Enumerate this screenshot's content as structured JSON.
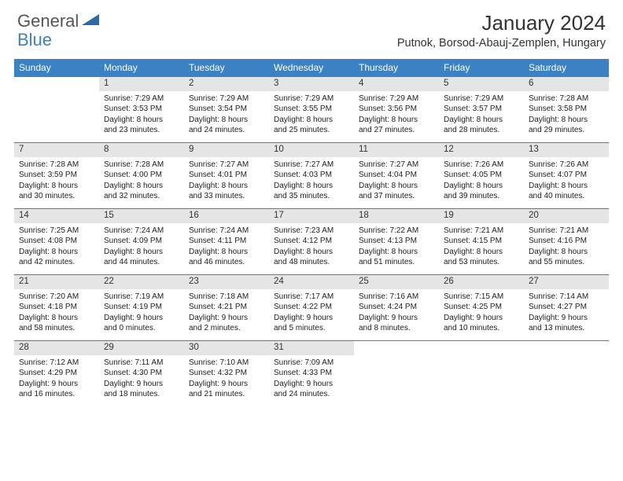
{
  "brand": {
    "general": "General",
    "blue": "Blue"
  },
  "title": "January 2024",
  "location": "Putnok, Borsod-Abauj-Zemplen, Hungary",
  "colors": {
    "header_bg": "#3b82c4",
    "daynum_bg": "#e5e5e5",
    "border": "#3b82c4"
  },
  "weekdays": [
    "Sunday",
    "Monday",
    "Tuesday",
    "Wednesday",
    "Thursday",
    "Friday",
    "Saturday"
  ],
  "weeks": [
    [
      null,
      {
        "n": "1",
        "sr": "Sunrise: 7:29 AM",
        "ss": "Sunset: 3:53 PM",
        "d1": "Daylight: 8 hours",
        "d2": "and 23 minutes."
      },
      {
        "n": "2",
        "sr": "Sunrise: 7:29 AM",
        "ss": "Sunset: 3:54 PM",
        "d1": "Daylight: 8 hours",
        "d2": "and 24 minutes."
      },
      {
        "n": "3",
        "sr": "Sunrise: 7:29 AM",
        "ss": "Sunset: 3:55 PM",
        "d1": "Daylight: 8 hours",
        "d2": "and 25 minutes."
      },
      {
        "n": "4",
        "sr": "Sunrise: 7:29 AM",
        "ss": "Sunset: 3:56 PM",
        "d1": "Daylight: 8 hours",
        "d2": "and 27 minutes."
      },
      {
        "n": "5",
        "sr": "Sunrise: 7:29 AM",
        "ss": "Sunset: 3:57 PM",
        "d1": "Daylight: 8 hours",
        "d2": "and 28 minutes."
      },
      {
        "n": "6",
        "sr": "Sunrise: 7:28 AM",
        "ss": "Sunset: 3:58 PM",
        "d1": "Daylight: 8 hours",
        "d2": "and 29 minutes."
      }
    ],
    [
      {
        "n": "7",
        "sr": "Sunrise: 7:28 AM",
        "ss": "Sunset: 3:59 PM",
        "d1": "Daylight: 8 hours",
        "d2": "and 30 minutes."
      },
      {
        "n": "8",
        "sr": "Sunrise: 7:28 AM",
        "ss": "Sunset: 4:00 PM",
        "d1": "Daylight: 8 hours",
        "d2": "and 32 minutes."
      },
      {
        "n": "9",
        "sr": "Sunrise: 7:27 AM",
        "ss": "Sunset: 4:01 PM",
        "d1": "Daylight: 8 hours",
        "d2": "and 33 minutes."
      },
      {
        "n": "10",
        "sr": "Sunrise: 7:27 AM",
        "ss": "Sunset: 4:03 PM",
        "d1": "Daylight: 8 hours",
        "d2": "and 35 minutes."
      },
      {
        "n": "11",
        "sr": "Sunrise: 7:27 AM",
        "ss": "Sunset: 4:04 PM",
        "d1": "Daylight: 8 hours",
        "d2": "and 37 minutes."
      },
      {
        "n": "12",
        "sr": "Sunrise: 7:26 AM",
        "ss": "Sunset: 4:05 PM",
        "d1": "Daylight: 8 hours",
        "d2": "and 39 minutes."
      },
      {
        "n": "13",
        "sr": "Sunrise: 7:26 AM",
        "ss": "Sunset: 4:07 PM",
        "d1": "Daylight: 8 hours",
        "d2": "and 40 minutes."
      }
    ],
    [
      {
        "n": "14",
        "sr": "Sunrise: 7:25 AM",
        "ss": "Sunset: 4:08 PM",
        "d1": "Daylight: 8 hours",
        "d2": "and 42 minutes."
      },
      {
        "n": "15",
        "sr": "Sunrise: 7:24 AM",
        "ss": "Sunset: 4:09 PM",
        "d1": "Daylight: 8 hours",
        "d2": "and 44 minutes."
      },
      {
        "n": "16",
        "sr": "Sunrise: 7:24 AM",
        "ss": "Sunset: 4:11 PM",
        "d1": "Daylight: 8 hours",
        "d2": "and 46 minutes."
      },
      {
        "n": "17",
        "sr": "Sunrise: 7:23 AM",
        "ss": "Sunset: 4:12 PM",
        "d1": "Daylight: 8 hours",
        "d2": "and 48 minutes."
      },
      {
        "n": "18",
        "sr": "Sunrise: 7:22 AM",
        "ss": "Sunset: 4:13 PM",
        "d1": "Daylight: 8 hours",
        "d2": "and 51 minutes."
      },
      {
        "n": "19",
        "sr": "Sunrise: 7:21 AM",
        "ss": "Sunset: 4:15 PM",
        "d1": "Daylight: 8 hours",
        "d2": "and 53 minutes."
      },
      {
        "n": "20",
        "sr": "Sunrise: 7:21 AM",
        "ss": "Sunset: 4:16 PM",
        "d1": "Daylight: 8 hours",
        "d2": "and 55 minutes."
      }
    ],
    [
      {
        "n": "21",
        "sr": "Sunrise: 7:20 AM",
        "ss": "Sunset: 4:18 PM",
        "d1": "Daylight: 8 hours",
        "d2": "and 58 minutes."
      },
      {
        "n": "22",
        "sr": "Sunrise: 7:19 AM",
        "ss": "Sunset: 4:19 PM",
        "d1": "Daylight: 9 hours",
        "d2": "and 0 minutes."
      },
      {
        "n": "23",
        "sr": "Sunrise: 7:18 AM",
        "ss": "Sunset: 4:21 PM",
        "d1": "Daylight: 9 hours",
        "d2": "and 2 minutes."
      },
      {
        "n": "24",
        "sr": "Sunrise: 7:17 AM",
        "ss": "Sunset: 4:22 PM",
        "d1": "Daylight: 9 hours",
        "d2": "and 5 minutes."
      },
      {
        "n": "25",
        "sr": "Sunrise: 7:16 AM",
        "ss": "Sunset: 4:24 PM",
        "d1": "Daylight: 9 hours",
        "d2": "and 8 minutes."
      },
      {
        "n": "26",
        "sr": "Sunrise: 7:15 AM",
        "ss": "Sunset: 4:25 PM",
        "d1": "Daylight: 9 hours",
        "d2": "and 10 minutes."
      },
      {
        "n": "27",
        "sr": "Sunrise: 7:14 AM",
        "ss": "Sunset: 4:27 PM",
        "d1": "Daylight: 9 hours",
        "d2": "and 13 minutes."
      }
    ],
    [
      {
        "n": "28",
        "sr": "Sunrise: 7:12 AM",
        "ss": "Sunset: 4:29 PM",
        "d1": "Daylight: 9 hours",
        "d2": "and 16 minutes."
      },
      {
        "n": "29",
        "sr": "Sunrise: 7:11 AM",
        "ss": "Sunset: 4:30 PM",
        "d1": "Daylight: 9 hours",
        "d2": "and 18 minutes."
      },
      {
        "n": "30",
        "sr": "Sunrise: 7:10 AM",
        "ss": "Sunset: 4:32 PM",
        "d1": "Daylight: 9 hours",
        "d2": "and 21 minutes."
      },
      {
        "n": "31",
        "sr": "Sunrise: 7:09 AM",
        "ss": "Sunset: 4:33 PM",
        "d1": "Daylight: 9 hours",
        "d2": "and 24 minutes."
      },
      null,
      null,
      null
    ]
  ]
}
